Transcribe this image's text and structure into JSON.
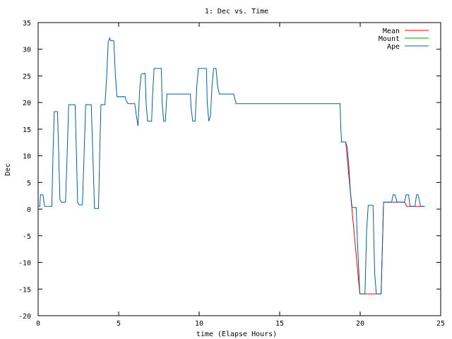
{
  "chart_data": {
    "type": "line",
    "title": "1: Dec vs. Time",
    "xlabel": "time (Elapse Hours)",
    "ylabel": "Dec",
    "xlim": [
      0,
      25
    ],
    "ylim": [
      -20,
      35
    ],
    "xticks": [
      0,
      5,
      10,
      15,
      20,
      25
    ],
    "yticks": [
      -20,
      -15,
      -10,
      -5,
      0,
      5,
      10,
      15,
      20,
      25,
      30,
      35
    ],
    "grid": false,
    "legend_position": "top-right",
    "series": [
      {
        "name": "Mean",
        "color": "#ff0000",
        "points": [
          [
            18.78,
            12.6
          ],
          [
            19.1,
            12.6
          ],
          [
            19.98,
            -15.9
          ],
          [
            20.3,
            -15.9
          ],
          [
            20.8,
            -15.9
          ],
          [
            21.3,
            -15.9
          ],
          [
            21.45,
            1.3
          ],
          [
            21.95,
            1.3
          ],
          [
            22.3,
            1.3
          ],
          [
            22.75,
            1.3
          ],
          [
            22.9,
            0.5
          ],
          [
            23.4,
            0.5
          ],
          [
            23.75,
            0.5
          ],
          [
            24.0,
            0.5
          ]
        ]
      },
      {
        "name": "Mount",
        "color": "#00a000",
        "points": [
          [
            4.9,
            21.1
          ],
          [
            5.4,
            21.1
          ]
        ]
      },
      {
        "name": "Ape",
        "color": "#0060ad",
        "points": [
          [
            0.0,
            0.5
          ],
          [
            0.1,
            0.5
          ],
          [
            0.15,
            2.7
          ],
          [
            0.3,
            2.7
          ],
          [
            0.4,
            0.5
          ],
          [
            0.85,
            0.5
          ],
          [
            0.92,
            10.0
          ],
          [
            1.0,
            18.3
          ],
          [
            1.2,
            18.3
          ],
          [
            1.28,
            10.0
          ],
          [
            1.35,
            1.8
          ],
          [
            1.45,
            1.3
          ],
          [
            1.7,
            1.3
          ],
          [
            1.8,
            10.0
          ],
          [
            1.9,
            19.6
          ],
          [
            2.3,
            19.6
          ],
          [
            2.38,
            10.0
          ],
          [
            2.45,
            1.3
          ],
          [
            2.55,
            0.8
          ],
          [
            2.75,
            0.8
          ],
          [
            2.85,
            10.0
          ],
          [
            2.95,
            19.6
          ],
          [
            3.3,
            19.6
          ],
          [
            3.4,
            10.0
          ],
          [
            3.5,
            0.1
          ],
          [
            3.75,
            0.1
          ],
          [
            3.82,
            10.0
          ],
          [
            3.9,
            19.6
          ],
          [
            4.15,
            19.6
          ],
          [
            4.25,
            24.5
          ],
          [
            4.35,
            31.4
          ],
          [
            4.45,
            32.1
          ],
          [
            4.5,
            31.6
          ],
          [
            4.7,
            31.6
          ],
          [
            4.8,
            25.0
          ],
          [
            4.9,
            21.1
          ],
          [
            5.4,
            21.1
          ],
          [
            5.5,
            20.1
          ],
          [
            5.6,
            19.8
          ],
          [
            6.0,
            19.8
          ],
          [
            6.1,
            17.5
          ],
          [
            6.2,
            15.6
          ],
          [
            6.3,
            22.0
          ],
          [
            6.4,
            25.3
          ],
          [
            6.65,
            25.5
          ],
          [
            6.7,
            20.0
          ],
          [
            6.8,
            16.5
          ],
          [
            7.05,
            16.5
          ],
          [
            7.1,
            21.0
          ],
          [
            7.2,
            26.4
          ],
          [
            7.65,
            26.4
          ],
          [
            7.7,
            20.0
          ],
          [
            7.8,
            16.5
          ],
          [
            7.9,
            16.5
          ],
          [
            8.0,
            21.6
          ],
          [
            9.45,
            21.6
          ],
          [
            9.5,
            19.0
          ],
          [
            9.6,
            16.5
          ],
          [
            9.75,
            16.5
          ],
          [
            9.85,
            23.0
          ],
          [
            9.95,
            26.4
          ],
          [
            10.45,
            26.4
          ],
          [
            10.5,
            20.0
          ],
          [
            10.6,
            16.5
          ],
          [
            10.7,
            17.5
          ],
          [
            10.8,
            23.0
          ],
          [
            10.9,
            26.4
          ],
          [
            11.05,
            26.4
          ],
          [
            11.15,
            23.0
          ],
          [
            11.25,
            21.6
          ],
          [
            12.15,
            21.6
          ],
          [
            12.2,
            20.8
          ],
          [
            12.3,
            19.8
          ],
          [
            18.75,
            19.8
          ],
          [
            18.8,
            15.0
          ],
          [
            18.85,
            12.6
          ],
          [
            19.1,
            12.6
          ],
          [
            19.2,
            11.5
          ],
          [
            19.3,
            8.0
          ],
          [
            19.4,
            3.0
          ],
          [
            19.5,
            0.3
          ],
          [
            19.75,
            0.3
          ],
          [
            19.85,
            -7.5
          ],
          [
            19.98,
            -15.9
          ],
          [
            20.3,
            -15.9
          ],
          [
            20.4,
            -4.0
          ],
          [
            20.5,
            0.7
          ],
          [
            20.8,
            0.7
          ],
          [
            20.9,
            -12.0
          ],
          [
            21.0,
            -15.9
          ],
          [
            21.3,
            -15.9
          ],
          [
            21.4,
            -5.0
          ],
          [
            21.45,
            1.3
          ],
          [
            21.95,
            1.3
          ],
          [
            22.05,
            2.7
          ],
          [
            22.15,
            2.7
          ],
          [
            22.3,
            1.3
          ],
          [
            22.75,
            1.3
          ],
          [
            22.85,
            2.7
          ],
          [
            23.0,
            2.7
          ],
          [
            23.1,
            0.5
          ],
          [
            23.4,
            0.5
          ],
          [
            23.5,
            2.7
          ],
          [
            23.6,
            2.7
          ],
          [
            23.75,
            0.5
          ],
          [
            24.0,
            0.5
          ]
        ]
      }
    ]
  }
}
